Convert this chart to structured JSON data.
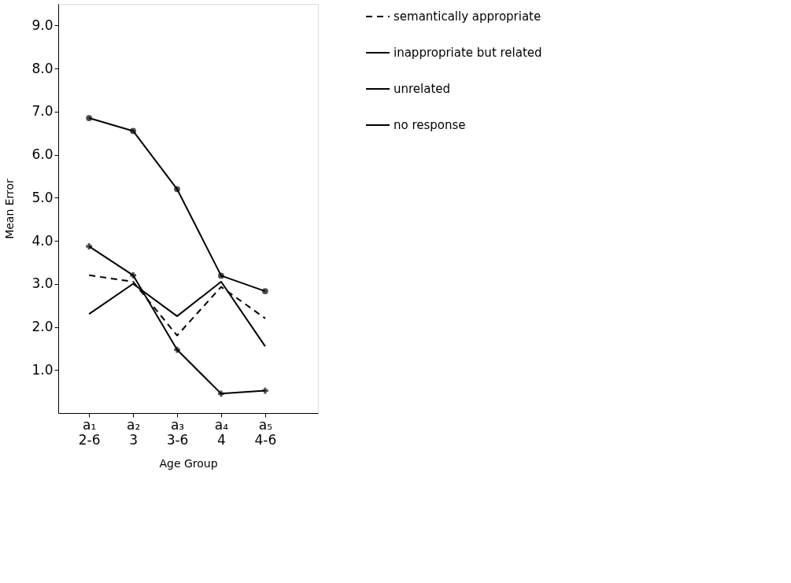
{
  "chart_data": {
    "type": "line",
    "xlabel": "Age Group",
    "ylabel": "Mean Error",
    "categories": [
      "a₁\n2-6",
      "a₂\n3",
      "a₃\n3-6",
      "a₄\n4",
      "a₅\n4-6"
    ],
    "ylim": [
      0,
      9.5
    ],
    "yticks": [
      {
        "value": 1,
        "label": "1.0"
      },
      {
        "value": 2,
        "label": "2.0"
      },
      {
        "value": 3,
        "label": "3.0"
      },
      {
        "value": 4,
        "label": "4.0"
      },
      {
        "value": 5,
        "label": "5.0"
      },
      {
        "value": 6,
        "label": "6.0"
      },
      {
        "value": 7,
        "label": "7.0"
      },
      {
        "value": 8,
        "label": "8.0"
      },
      {
        "value": 9,
        "label": "9.0"
      }
    ],
    "grid": false,
    "legend": "right",
    "series": [
      {
        "name": "semantically appropriate",
        "color": "#000000",
        "line_style": "dashed",
        "marker": "none",
        "values": [
          3.2,
          3.05,
          1.8,
          2.93,
          2.2
        ]
      },
      {
        "name": "inappropriate but related",
        "color": "#000000",
        "line_style": "solid",
        "marker": "none",
        "values": [
          2.3,
          3.0,
          2.25,
          3.05,
          1.55
        ]
      },
      {
        "name": "unrelated",
        "color": "#000000",
        "line_style": "solid",
        "marker": "cross",
        "values": [
          3.87,
          3.2,
          1.47,
          0.45,
          0.52
        ]
      },
      {
        "name": "no response",
        "color": "#000000",
        "line_style": "solid",
        "marker": "circle",
        "values": [
          6.85,
          6.55,
          5.2,
          3.19,
          2.83
        ]
      }
    ]
  }
}
